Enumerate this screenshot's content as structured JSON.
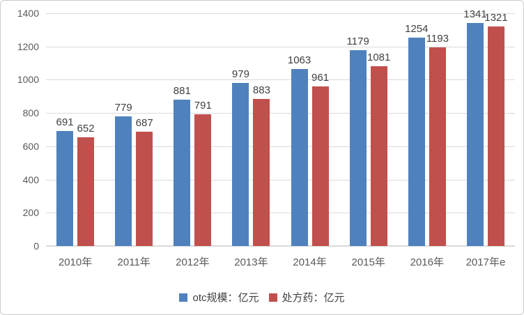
{
  "chart_data": {
    "type": "bar",
    "categories": [
      "2010年",
      "2011年",
      "2012年",
      "2013年",
      "2014年",
      "2015年",
      "2016年",
      "2017年e"
    ],
    "series": [
      {
        "name": "otc规模：亿元",
        "color": "#4f81bd",
        "values": [
          691,
          779,
          881,
          979,
          1063,
          1179,
          1254,
          1341
        ]
      },
      {
        "name": "处方药：亿元",
        "color": "#c0504d",
        "values": [
          652,
          687,
          791,
          883,
          961,
          1081,
          1193,
          1321
        ]
      }
    ],
    "title": "",
    "xlabel": "",
    "ylabel": "",
    "ylim": [
      0,
      1400
    ],
    "ytick_step": 200,
    "yticks": [
      "0",
      "200",
      "400",
      "600",
      "800",
      "1000",
      "1200",
      "1400"
    ],
    "grid": "horizontal",
    "gridline_color": "#d9d9d9",
    "axis_text_color": "#595959",
    "data_label_color": "#404040",
    "data_labels": true,
    "legend_position": "bottom"
  },
  "legend": {
    "items": [
      {
        "label": "otc规模：亿元",
        "color": "#4f81bd"
      },
      {
        "label": "处方药：亿元",
        "color": "#c0504d"
      }
    ]
  }
}
